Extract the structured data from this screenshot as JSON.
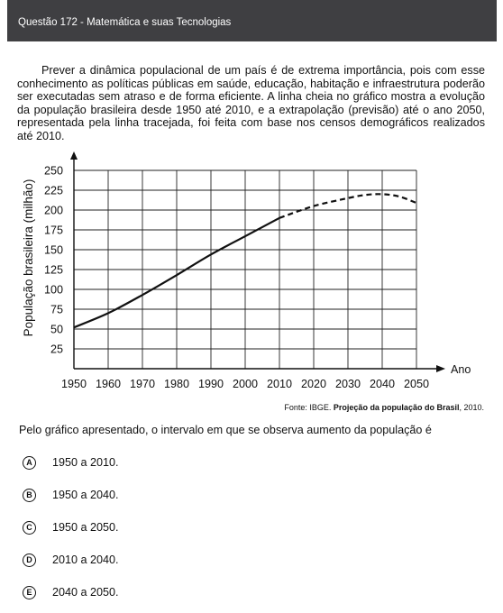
{
  "header": {
    "title": "Questão 172 - Matemática e suas Tecnologias"
  },
  "intro": "Prever a dinâmica populacional de um país é de extrema importância, pois com esse conhecimento as políticas públicas em saúde, educação, habitação e infraestrutura poderão ser executadas sem atraso e de forma eficiente. A linha cheia no gráfico mostra a evolução da população brasileira desde 1950 até 2010, e a extrapolação (previsão) até o ano 2050, representada pela linha tracejada, foi feita com base nos censos demográficos realizados até 2010.",
  "chart_data": {
    "type": "line",
    "xlabel": "Ano",
    "ylabel": "População brasileira (milhão)",
    "x_ticks": [
      1950,
      1960,
      1970,
      1980,
      1990,
      2000,
      2010,
      2020,
      2030,
      2040,
      2050
    ],
    "y_ticks": [
      25,
      50,
      75,
      100,
      125,
      150,
      175,
      200,
      225,
      250
    ],
    "xlim": [
      1950,
      2050
    ],
    "ylim": [
      0,
      250
    ],
    "grid": true,
    "series": [
      {
        "style": "solid",
        "x": [
          1950,
          1960,
          1970,
          1980,
          1990,
          2000,
          2010
        ],
        "values": [
          52,
          70,
          93,
          118,
          144,
          167,
          190
        ]
      },
      {
        "style": "dashed",
        "x": [
          2010,
          2020,
          2030,
          2035,
          2040,
          2045,
          2050
        ],
        "values": [
          190,
          205,
          215,
          219,
          220,
          217,
          209
        ]
      }
    ]
  },
  "source": {
    "prefix": "Fonte: IBGE. ",
    "title": "Projeção da população do Brasil",
    "suffix": ", 2010."
  },
  "question": "Pelo gráfico apresentado, o intervalo em que se observa aumento da população é",
  "options": [
    {
      "letter": "A",
      "text": "1950 a 2010."
    },
    {
      "letter": "B",
      "text": "1950 a 2040."
    },
    {
      "letter": "C",
      "text": "1950 a 2050."
    },
    {
      "letter": "D",
      "text": "2010 a 2040."
    },
    {
      "letter": "E",
      "text": "2040 a 2050."
    }
  ]
}
